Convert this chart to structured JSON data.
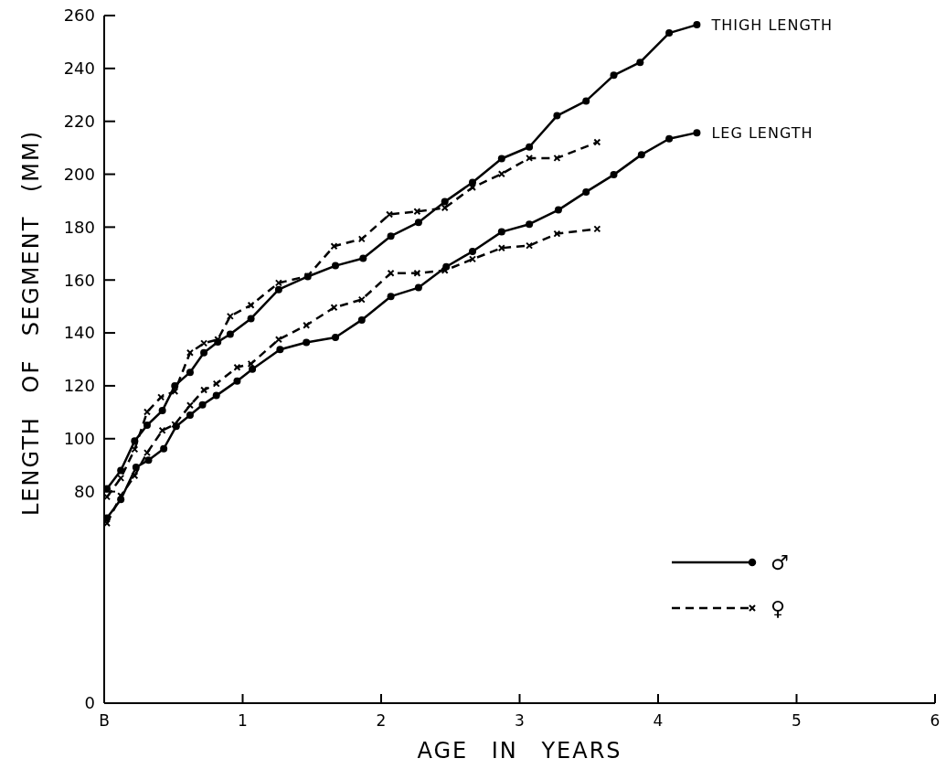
{
  "chart_data": {
    "type": "line",
    "xlabel": "AGE IN YEARS",
    "ylabel": "LENGTH OF SEGMENT (MM)",
    "xlim": [
      0,
      6
    ],
    "xticks": [
      {
        "value": 0,
        "label": "B"
      },
      1,
      2,
      3,
      4,
      5,
      6
    ],
    "ylim": [
      0,
      260
    ],
    "yticks": [
      0,
      80,
      100,
      120,
      140,
      160,
      180,
      200,
      220,
      240,
      260
    ],
    "grid": false,
    "legend": "bottom right",
    "annotations": [
      {
        "text": "THIGH LENGTH",
        "x": 4.28,
        "y": 256.5
      },
      {
        "text": "LEG LENGTH",
        "x": 4.28,
        "y": 215.7
      }
    ],
    "series": [
      {
        "name": "♂",
        "color": "#000000",
        "marker": "circle",
        "line_style": "solid",
        "x": [
          0.02,
          0.12,
          0.22,
          0.31,
          0.42,
          0.51,
          0.62,
          0.72,
          0.82,
          0.91,
          1.06,
          1.26,
          1.47,
          1.67,
          1.87,
          2.07,
          2.27,
          2.46,
          2.66,
          2.87,
          3.07,
          3.27,
          3.48,
          3.68,
          3.87,
          4.08,
          4.28
        ],
        "values": [
          81.1,
          88.0,
          99.1,
          105.1,
          110.6,
          120.0,
          125.1,
          132.5,
          136.6,
          139.5,
          145.4,
          156.4,
          161.3,
          165.4,
          168.2,
          176.6,
          181.8,
          189.6,
          196.9,
          205.9,
          210.3,
          222.1,
          227.7,
          237.4,
          242.3,
          253.4,
          256.5
        ]
      },
      {
        "color": "#000000",
        "marker": "circle",
        "line_style": "solid",
        "x": [
          0.02,
          0.12,
          0.23,
          0.32,
          0.43,
          0.52,
          0.62,
          0.71,
          0.81,
          0.96,
          1.07,
          1.27,
          1.46,
          1.67,
          1.86,
          2.07,
          2.27,
          2.47,
          2.66,
          2.87,
          3.07,
          3.28,
          3.48,
          3.68,
          3.88,
          4.08,
          4.28
        ],
        "values": [
          70,
          77,
          89.2,
          91.9,
          96.2,
          104.7,
          108.9,
          112.8,
          116.3,
          121.8,
          126.3,
          133.7,
          136.4,
          138.3,
          144.9,
          153.8,
          157.1,
          165.0,
          170.8,
          178.2,
          181.1,
          186.5,
          193.3,
          199.8,
          207.4,
          213.4,
          215.7
        ]
      },
      {
        "name": "♀",
        "color": "#000000",
        "marker": "cross",
        "line_style": "dashed",
        "x": [
          0.02,
          0.12,
          0.22,
          0.31,
          0.41,
          0.51,
          0.62,
          0.72,
          0.82,
          0.91,
          1.06,
          1.26,
          1.47,
          1.66,
          1.86,
          2.06,
          2.26,
          2.46,
          2.66,
          2.87,
          3.07,
          3.27,
          3.56
        ],
        "values": [
          78,
          85.1,
          96,
          110.1,
          115.7,
          117.9,
          132.5,
          136.1,
          137.5,
          146.3,
          150.5,
          158.9,
          161.5,
          172.8,
          175.5,
          184.8,
          185.9,
          187.3,
          195.0,
          200.1,
          206.1,
          206.1,
          212.1
        ]
      },
      {
        "color": "#000000",
        "marker": "cross",
        "line_style": "dashed",
        "x": [
          0.02,
          0.12,
          0.22,
          0.31,
          0.42,
          0.51,
          0.62,
          0.72,
          0.81,
          0.96,
          1.06,
          1.26,
          1.46,
          1.66,
          1.86,
          2.07,
          2.26,
          2.46,
          2.66,
          2.87,
          3.07,
          3.27,
          3.56
        ],
        "values": [
          68,
          78.4,
          86.0,
          94.7,
          103.1,
          105.4,
          112.6,
          118.4,
          120.8,
          127.0,
          128.3,
          137.5,
          142.9,
          149.6,
          152.6,
          162.6,
          162.6,
          163.6,
          167.9,
          172.1,
          173.0,
          177.5,
          179.3
        ]
      }
    ]
  }
}
